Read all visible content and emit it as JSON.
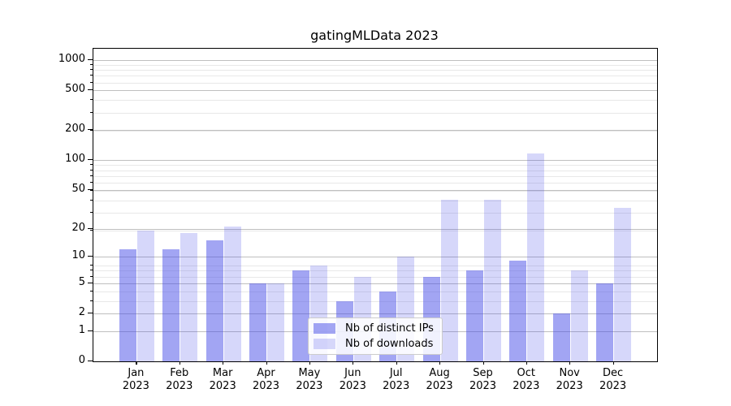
{
  "chart_data": {
    "type": "bar",
    "title": "gatingMLData 2023",
    "categories": [
      "Jan 2023",
      "Feb 2023",
      "Mar 2023",
      "Apr 2023",
      "May 2023",
      "Jun 2023",
      "Jul 2023",
      "Aug 2023",
      "Sep 2023",
      "Oct 2023",
      "Nov 2023",
      "Dec 2023"
    ],
    "series": [
      {
        "name": "Nb of distinct IPs",
        "color": "#464be8",
        "alpha": 0.5,
        "values": [
          12,
          12,
          15,
          5,
          7,
          3,
          4,
          6,
          7,
          9,
          2,
          5
        ]
      },
      {
        "name": "Nb of downloads",
        "color": "#464be8",
        "alpha": 0.22,
        "values": [
          19,
          18,
          21,
          5,
          8,
          6,
          10,
          40,
          40,
          117,
          7,
          33
        ]
      }
    ],
    "yscale": "log1p",
    "y_ticks": [
      0,
      1,
      2,
      5,
      10,
      20,
      50,
      100,
      200,
      500,
      1000
    ],
    "ylim": [
      0,
      1300
    ],
    "xlabel": "",
    "ylabel": "",
    "grid": true,
    "legend_position": "lower center",
    "colors": {
      "bar_dark_on_white": "#a7a9f2",
      "bar_light_on_white": "#d7d8f6",
      "grid_major": "#bfbfbf",
      "grid_minor": "#e8e8e8",
      "axis": "#000000"
    }
  }
}
